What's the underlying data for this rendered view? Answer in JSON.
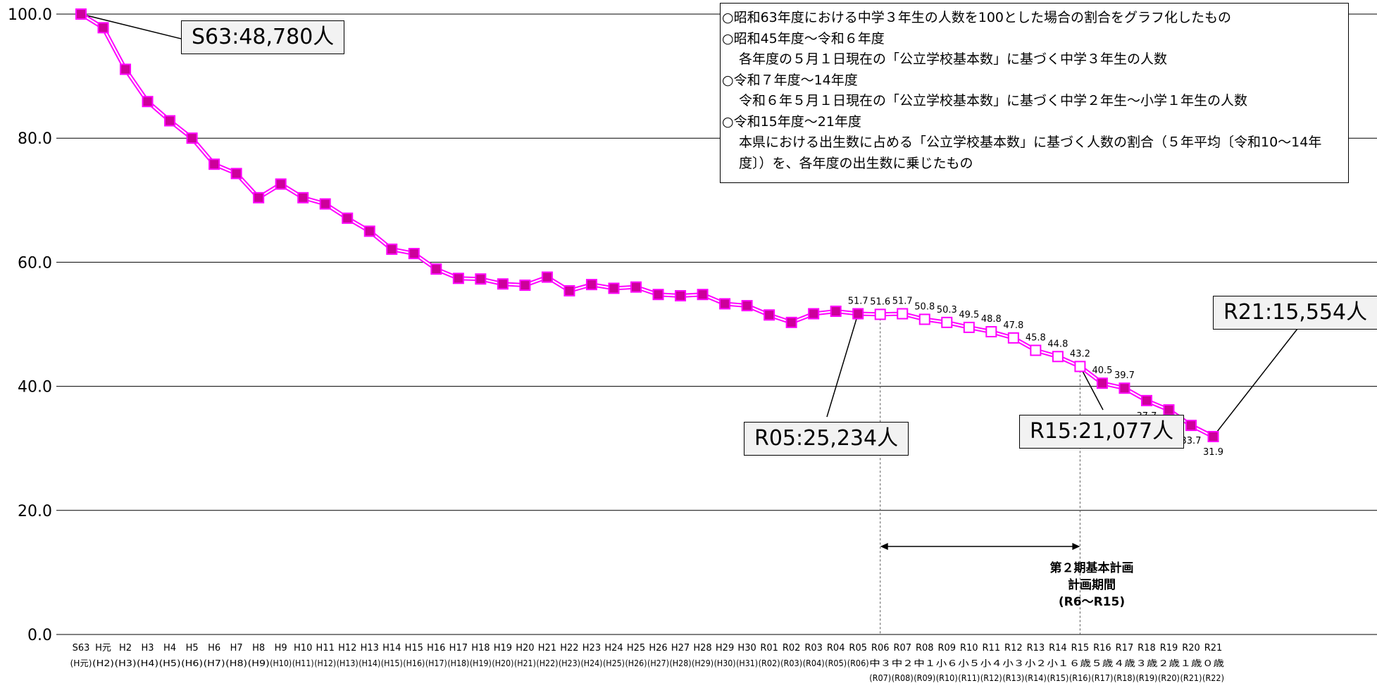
{
  "chart_data": {
    "type": "line",
    "ylim": [
      0,
      100
    ],
    "yticks": [
      "0.0",
      "20.0",
      "40.0",
      "60.0",
      "80.0",
      "100.0"
    ],
    "categories": [
      "S63",
      "H元",
      "H2",
      "H3",
      "H4",
      "H5",
      "H6",
      "H7",
      "H8",
      "H9",
      "H10",
      "H11",
      "H12",
      "H13",
      "H14",
      "H15",
      "H16",
      "H17",
      "H18",
      "H19",
      "H20",
      "H21",
      "H22",
      "H23",
      "H24",
      "H25",
      "H26",
      "H27",
      "H28",
      "H29",
      "H30",
      "R01",
      "R02",
      "R03",
      "R04",
      "R05",
      "R06",
      "R07",
      "R08",
      "R09",
      "R10",
      "R11",
      "R12",
      "R13",
      "R14",
      "R15",
      "R16",
      "R17",
      "R18",
      "R19",
      "R20",
      "R21"
    ],
    "categories_sub": [
      "(H元)",
      "(H2)",
      "(H3)",
      "(H4)",
      "(H5)",
      "(H6)",
      "(H7)",
      "(H8)",
      "(H9)",
      "(H10)",
      "(H11)",
      "(H12)",
      "(H13)",
      "(H14)",
      "(H15)",
      "(H16)",
      "(H17)",
      "(H18)",
      "(H19)",
      "(H20)",
      "(H21)",
      "(H22)",
      "(H23)",
      "(H24)",
      "(H25)",
      "(H26)",
      "(H27)",
      "(H28)",
      "(H29)",
      "(H30)",
      "(H31)",
      "(R02)",
      "(R03)",
      "(R04)",
      "(R05)",
      "(R06)",
      "中３",
      "中２",
      "中１",
      "小６",
      "小５",
      "小４",
      "小３",
      "小２",
      "小１",
      "６歳",
      "５歳",
      "４歳",
      "３歳",
      "２歳",
      "１歳",
      "０歳"
    ],
    "categories_sub2": [
      "",
      "",
      "",
      "",
      "",
      "",
      "",
      "",
      "",
      "",
      "",
      "",
      "",
      "",
      "",
      "",
      "",
      "",
      "",
      "",
      "",
      "",
      "",
      "",
      "",
      "",
      "",
      "",
      "",
      "",
      "",
      "",
      "",
      "",
      "",
      "",
      "(R07)",
      "(R08)",
      "(R09)",
      "(R10)",
      "(R11)",
      "(R12)",
      "(R13)",
      "(R14)",
      "(R15)",
      "(R16)",
      "(R17)",
      "(R18)",
      "(R19)",
      "(R20)",
      "(R21)",
      "(R22)"
    ],
    "values": [
      100.0,
      97.8,
      91.1,
      85.9,
      82.8,
      80.0,
      75.8,
      74.3,
      70.4,
      72.6,
      70.4,
      69.4,
      67.1,
      65.0,
      62.1,
      61.4,
      58.9,
      57.4,
      57.3,
      56.5,
      56.3,
      57.6,
      55.4,
      56.4,
      55.8,
      56.0,
      54.8,
      54.6,
      54.8,
      53.3,
      53.0,
      51.5,
      50.3,
      51.7,
      52.1,
      51.7,
      51.6,
      51.7,
      50.8,
      50.3,
      49.5,
      48.8,
      47.8,
      45.8,
      44.8,
      43.2,
      40.5,
      39.7,
      37.7,
      36.2,
      33.7,
      31.9
    ],
    "marker_style": [
      "filled",
      "filled",
      "filled",
      "filled",
      "filled",
      "filled",
      "filled",
      "filled",
      "filled",
      "filled",
      "filled",
      "filled",
      "filled",
      "filled",
      "filled",
      "filled",
      "filled",
      "filled",
      "filled",
      "filled",
      "filled",
      "filled",
      "filled",
      "filled",
      "filled",
      "filled",
      "filled",
      "filled",
      "filled",
      "filled",
      "filled",
      "filled",
      "filled",
      "filled",
      "filled",
      "filled",
      "hollow",
      "hollow",
      "hollow",
      "hollow",
      "hollow",
      "hollow",
      "hollow",
      "hollow",
      "hollow",
      "hollow",
      "filled",
      "filled",
      "filled",
      "filled",
      "filled",
      "filled"
    ],
    "data_labels": [
      {
        "index": 35,
        "text": "51.7",
        "pos": "above"
      },
      {
        "index": 36,
        "text": "51.6",
        "pos": "above"
      },
      {
        "index": 37,
        "text": "51.7",
        "pos": "above"
      },
      {
        "index": 38,
        "text": "50.8",
        "pos": "above"
      },
      {
        "index": 39,
        "text": "50.3",
        "pos": "above"
      },
      {
        "index": 40,
        "text": "49.5",
        "pos": "above"
      },
      {
        "index": 41,
        "text": "48.8",
        "pos": "above"
      },
      {
        "index": 42,
        "text": "47.8",
        "pos": "above"
      },
      {
        "index": 43,
        "text": "45.8",
        "pos": "above"
      },
      {
        "index": 44,
        "text": "44.8",
        "pos": "above"
      },
      {
        "index": 45,
        "text": "43.2",
        "pos": "above"
      },
      {
        "index": 46,
        "text": "40.5",
        "pos": "above"
      },
      {
        "index": 47,
        "text": "39.7",
        "pos": "above"
      },
      {
        "index": 48,
        "text": "37.7",
        "pos": "below"
      },
      {
        "index": 49,
        "text": "36.2",
        "pos": "below"
      },
      {
        "index": 50,
        "text": "33.7",
        "pos": "below"
      },
      {
        "index": 51,
        "text": "31.9",
        "pos": "below"
      }
    ],
    "grid": true,
    "period_start_index": 36,
    "period_end_index": 45,
    "colors": {
      "line": "#ff00ff",
      "marker_fill": "#cc0099",
      "marker_stroke": "#ff00ff",
      "grid": "#000000"
    }
  },
  "callouts": {
    "s63": "S63:48,780人",
    "r05": "R05:25,234人",
    "r15": "R15:21,077人",
    "r21": "R21:15,554人"
  },
  "notes": [
    "○昭和63年度における中学３年生の人数を100とした場合の割合をグラフ化したもの",
    "○昭和45年度～令和６年度",
    "各年度の５月１日現在の「公立学校基本数」に基づく中学３年生の人数",
    "○令和７年度～14年度",
    "令和６年５月１日現在の「公立学校基本数」に基づく中学２年生～小学１年生の人数",
    "○令和15年度～21年度",
    "本県における出生数に占める「公立学校基本数」に基づく人数の割合（５年平均〔令和10～14年度〕）を、各年度の出生数に乗じたもの"
  ],
  "period": {
    "line1": "第２期基本計画",
    "line2": "計画期間",
    "line3": "(R6～R15)"
  }
}
